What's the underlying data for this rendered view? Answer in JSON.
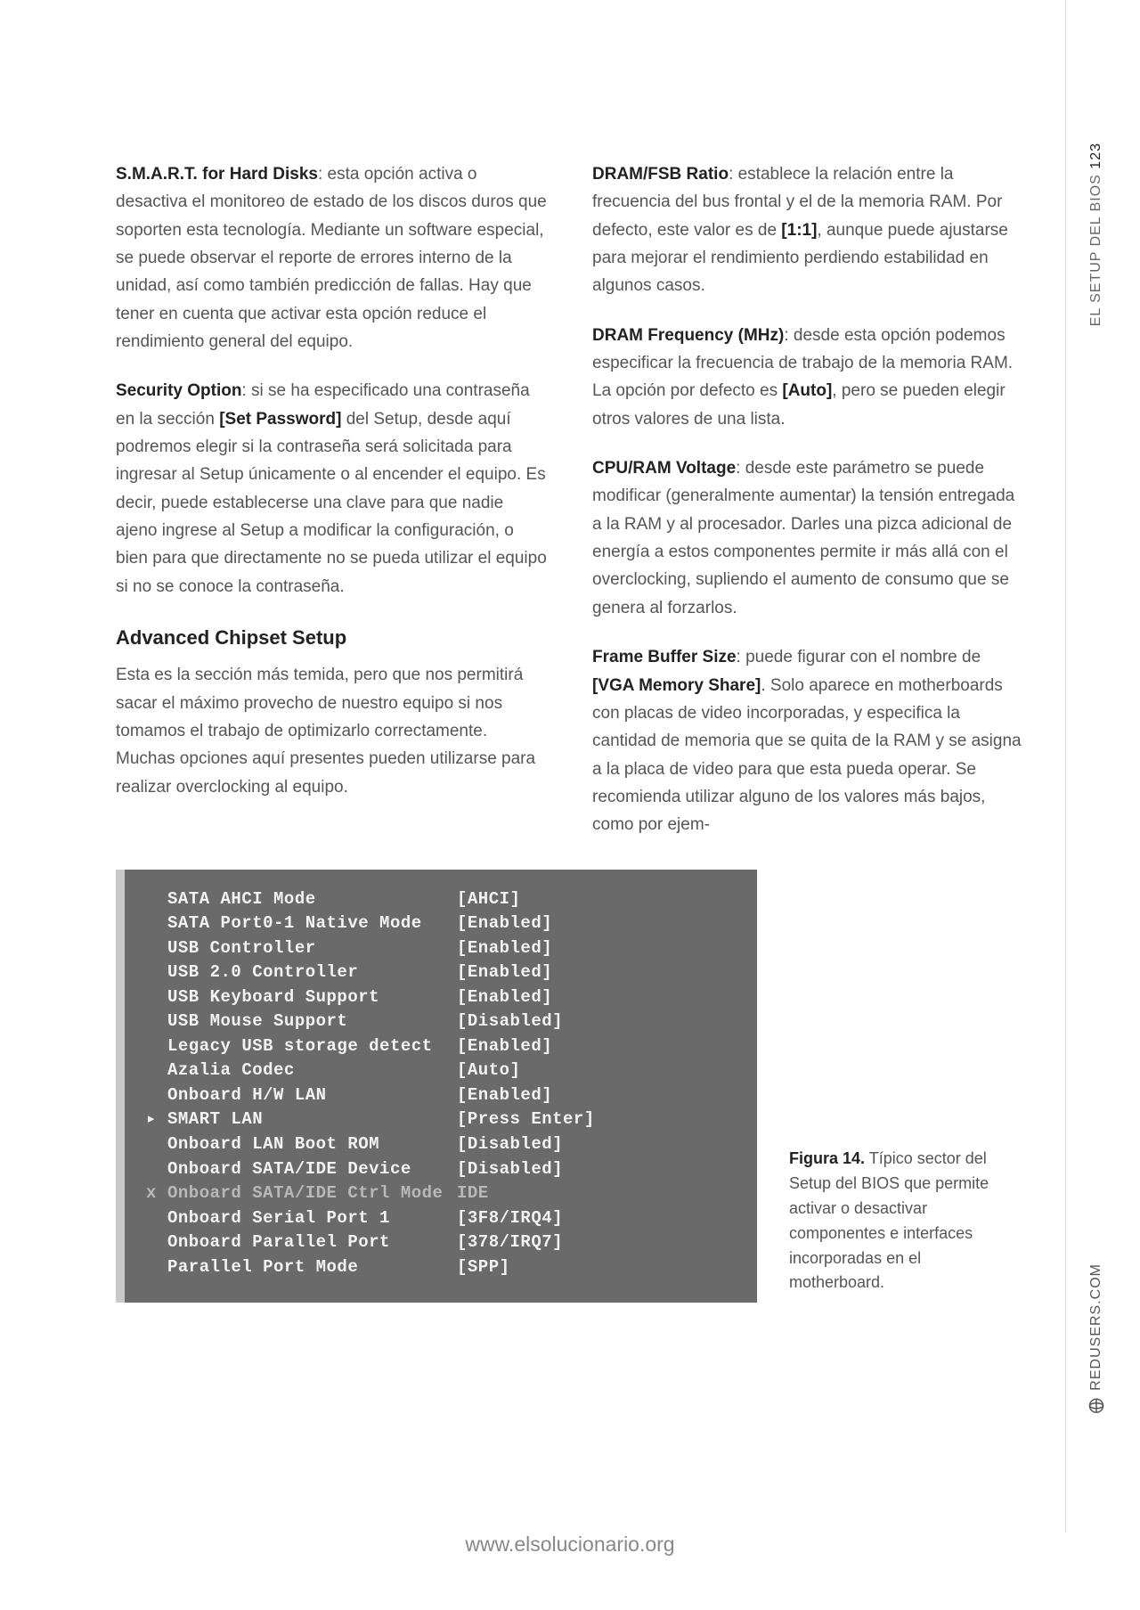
{
  "sidebar": {
    "section_label": "EL SETUP DEL BIOS",
    "page_num": "123",
    "site": "REDUSERS.COM"
  },
  "footer_url": "www.elsolucionario.org",
  "left_col": {
    "p1_strong": "S.M.A.R.T. for Hard Disks",
    "p1": ": esta opción activa o desactiva el monitoreo de estado de los discos duros que soporten esta tecnología. Mediante un software especial, se puede observar el reporte de errores interno de la unidad, así como también predicción de fallas. Hay que tener en cuenta que activar esta opción reduce el rendimiento general del equipo.",
    "p2_strong": "Security Option",
    "p2a": ": si se ha especificado una contraseña en la sección ",
    "p2_bold": "[Set Password]",
    "p2b": " del Setup, desde aquí podremos elegir si la contraseña será solicitada para ingresar al Setup únicamente o al encender el equipo. Es decir, puede establecerse una clave para que nadie ajeno ingrese al Setup a modificar la configuración, o bien para que directamente no se pueda utilizar el equipo si no se conoce la contraseña.",
    "subhead": "Advanced Chipset Setup",
    "p3": "Esta es la sección más temida, pero que nos permitirá sacar el máximo provecho de nuestro equipo si nos tomamos el trabajo de optimizarlo correctamente. Muchas opciones aquí presentes pueden utilizarse para realizar overclocking al equipo."
  },
  "right_col": {
    "p1_strong": "DRAM/FSB Ratio",
    "p1a": ": establece la relación entre la frecuencia del bus frontal y el de la memoria RAM. Por defecto, este valor es de ",
    "p1_bold": "[1:1]",
    "p1b": ", aunque puede ajustarse para mejorar el rendimiento perdiendo estabilidad en algunos casos.",
    "p2_strong": "DRAM Frequency (MHz)",
    "p2a": ": desde esta opción podemos especificar la frecuencia de trabajo de la memoria RAM. La opción por defecto es ",
    "p2_bold": "[Auto]",
    "p2b": ", pero se pueden elegir otros valores de una lista.",
    "p3_strong": "CPU/RAM Voltage",
    "p3": ": desde este parámetro se puede modificar (generalmente aumentar) la tensión entregada a la RAM y al procesador. Darles una pizca adicional de energía a estos componentes permite ir más allá con el overclocking, supliendo el aumento de consumo que se genera al forzarlos.",
    "p4_strong": "Frame Buffer Size",
    "p4a": ": puede figurar con el nombre de ",
    "p4_bold": "[VGA Memory Share]",
    "p4b": ". Solo aparece en motherboards con placas de video incorporadas, y especifica la cantidad de memoria que se quita de la RAM y se asigna a la placa de video para que esta pueda operar. Se recomienda utilizar alguno de los valores más bajos, como por ejem-"
  },
  "bios": {
    "rows": [
      {
        "marker": "",
        "label": "SATA AHCI Mode",
        "val": "[AHCI]",
        "dim": false
      },
      {
        "marker": "",
        "label": "SATA Port0-1 Native Mode",
        "val": "[Enabled]",
        "dim": false
      },
      {
        "marker": "",
        "label": "USB Controller",
        "val": "[Enabled]",
        "dim": false
      },
      {
        "marker": "",
        "label": "USB 2.0 Controller",
        "val": "[Enabled]",
        "dim": false
      },
      {
        "marker": "",
        "label": "USB Keyboard Support",
        "val": "[Enabled]",
        "dim": false
      },
      {
        "marker": "",
        "label": "USB Mouse Support",
        "val": "[Disabled]",
        "dim": false
      },
      {
        "marker": "",
        "label": "Legacy USB storage detect",
        "val": "[Enabled]",
        "dim": false
      },
      {
        "marker": "",
        "label": "Azalia Codec",
        "val": "[Auto]",
        "dim": false
      },
      {
        "marker": "",
        "label": "Onboard H/W LAN",
        "val": "[Enabled]",
        "dim": false
      },
      {
        "marker": "▸",
        "label": "SMART LAN",
        "val": "[Press Enter]",
        "dim": false
      },
      {
        "marker": "",
        "label": "Onboard LAN Boot ROM",
        "val": "[Disabled]",
        "dim": false
      },
      {
        "marker": "",
        "label": "Onboard SATA/IDE Device",
        "val": "[Disabled]",
        "dim": false
      },
      {
        "marker": "x",
        "label": "Onboard SATA/IDE Ctrl Mode",
        "val": "IDE",
        "dim": true
      },
      {
        "marker": "",
        "label": "Onboard Serial Port 1",
        "val": "[3F8/IRQ4]",
        "dim": false
      },
      {
        "marker": "",
        "label": "Onboard Parallel Port",
        "val": "[378/IRQ7]",
        "dim": false
      },
      {
        "marker": "",
        "label": "Parallel Port Mode",
        "val": "[SPP]",
        "dim": false
      }
    ]
  },
  "caption": {
    "fig": "Figura 14.",
    "text": " Típico sector del Setup del BIOS que permite activar o desactivar componentes e interfaces incorporadas en el motherboard."
  }
}
